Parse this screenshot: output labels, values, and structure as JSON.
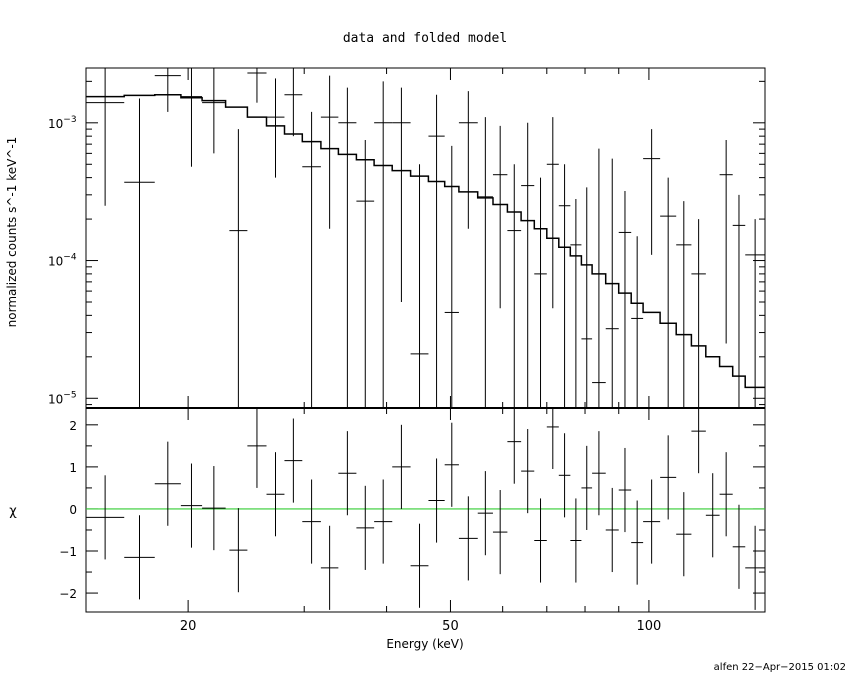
{
  "chart_data": [
    {
      "type": "scatter",
      "title": "data and folded model",
      "ylabel": "normalized counts s^-1 keV^-1",
      "xscale": "log",
      "yscale": "log",
      "xlim": [
        14,
        150
      ],
      "ylim": [
        8.5e-06,
        0.0025
      ],
      "y_ticks": [
        {
          "base": "10",
          "exp": "−3",
          "value": 0.001
        },
        {
          "base": "10",
          "exp": "−4",
          "value": 0.0001
        },
        {
          "base": "10",
          "exp": "−5",
          "value": 1e-05
        }
      ],
      "model_color": "#000000",
      "data_points": [
        {
          "xlo": 14.0,
          "xhi": 16.0,
          "y": 0.0014,
          "ylo": 0.00025,
          "yhi": 0.0025
        },
        {
          "xlo": 16.0,
          "xhi": 17.8,
          "y": 0.00037,
          "ylo": 8.5e-06,
          "yhi": 0.0015
        },
        {
          "xlo": 17.8,
          "xhi": 19.5,
          "y": 0.0022,
          "ylo": 0.0012,
          "yhi": 0.0025
        },
        {
          "xlo": 19.5,
          "xhi": 21.0,
          "y": 0.00155,
          "ylo": 0.00048,
          "yhi": 0.0025
        },
        {
          "xlo": 21.0,
          "xhi": 22.8,
          "y": 0.0014,
          "ylo": 0.0006,
          "yhi": 0.0025
        },
        {
          "xlo": 23.1,
          "xhi": 24.6,
          "y": 0.000165,
          "ylo": 8.5e-06,
          "yhi": 0.0009
        },
        {
          "xlo": 24.6,
          "xhi": 26.3,
          "y": 0.0023,
          "ylo": 0.0014,
          "yhi": 0.0025
        },
        {
          "xlo": 26.3,
          "xhi": 28.0,
          "y": 0.0011,
          "ylo": 0.0004,
          "yhi": 0.0021
        },
        {
          "xlo": 28.0,
          "xhi": 29.8,
          "y": 0.0016,
          "ylo": 0.0008,
          "yhi": 0.0025
        },
        {
          "xlo": 29.8,
          "xhi": 31.8,
          "y": 0.00048,
          "ylo": 8.5e-06,
          "yhi": 0.0012
        },
        {
          "xlo": 31.8,
          "xhi": 33.8,
          "y": 0.0011,
          "ylo": 0.00017,
          "yhi": 0.0022
        },
        {
          "xlo": 33.8,
          "xhi": 36.0,
          "y": 0.001,
          "ylo": 8.5e-06,
          "yhi": 0.0018
        },
        {
          "xlo": 36.0,
          "xhi": 38.3,
          "y": 0.00027,
          "ylo": 8.5e-06,
          "yhi": 0.00075
        },
        {
          "xlo": 38.3,
          "xhi": 40.8,
          "y": 0.001,
          "ylo": 8.5e-06,
          "yhi": 0.002
        },
        {
          "xlo": 40.8,
          "xhi": 43.5,
          "y": 0.001,
          "ylo": 5e-05,
          "yhi": 0.0018
        },
        {
          "xlo": 43.5,
          "xhi": 46.3,
          "y": 2.1e-05,
          "ylo": 8.5e-06,
          "yhi": 0.0005
        },
        {
          "xlo": 46.3,
          "xhi": 49.0,
          "y": 0.0008,
          "ylo": 8.5e-06,
          "yhi": 0.0016
        },
        {
          "xlo": 49.0,
          "xhi": 51.5,
          "y": 4.2e-05,
          "ylo": 8.5e-06,
          "yhi": 0.00068
        },
        {
          "xlo": 51.5,
          "xhi": 55.0,
          "y": 0.001,
          "ylo": 0.00017,
          "yhi": 0.0017
        },
        {
          "xlo": 55.0,
          "xhi": 58.0,
          "y": 0.00029,
          "ylo": 8.5e-06,
          "yhi": 0.0011
        },
        {
          "xlo": 58.0,
          "xhi": 61.0,
          "y": 0.00042,
          "ylo": 4.5e-05,
          "yhi": 0.00095
        },
        {
          "xlo": 61.0,
          "xhi": 64.0,
          "y": 0.000165,
          "ylo": 8.5e-06,
          "yhi": 0.0005
        },
        {
          "xlo": 64.0,
          "xhi": 67.0,
          "y": 0.00035,
          "ylo": 8.5e-06,
          "yhi": 0.001
        },
        {
          "xlo": 67.0,
          "xhi": 70.0,
          "y": 8e-05,
          "ylo": 8.5e-06,
          "yhi": 0.0004
        },
        {
          "xlo": 70.0,
          "xhi": 73.0,
          "y": 0.0005,
          "ylo": 4.5e-05,
          "yhi": 0.0011
        },
        {
          "xlo": 73.0,
          "xhi": 76.0,
          "y": 0.00025,
          "ylo": 8.5e-06,
          "yhi": 0.0005
        },
        {
          "xlo": 76.0,
          "xhi": 79.0,
          "y": 0.00013,
          "ylo": 8.5e-06,
          "yhi": 0.00028
        },
        {
          "xlo": 79.0,
          "xhi": 82.0,
          "y": 2.7e-05,
          "ylo": 8.5e-06,
          "yhi": 0.00034
        },
        {
          "xlo": 82.0,
          "xhi": 86.0,
          "y": 1.3e-05,
          "ylo": 8.5e-06,
          "yhi": 0.00065
        },
        {
          "xlo": 86.0,
          "xhi": 90.0,
          "y": 3.2e-05,
          "ylo": 8.5e-06,
          "yhi": 0.00055
        },
        {
          "xlo": 90.0,
          "xhi": 94.0,
          "y": 0.00016,
          "ylo": 8.5e-06,
          "yhi": 0.00032
        },
        {
          "xlo": 94.0,
          "xhi": 98.0,
          "y": 3.8e-05,
          "ylo": 8.5e-06,
          "yhi": 0.00015
        },
        {
          "xlo": 98.0,
          "xhi": 104.0,
          "y": 0.00055,
          "ylo": 0.00011,
          "yhi": 0.0009
        },
        {
          "xlo": 104.0,
          "xhi": 110.0,
          "y": 0.00021,
          "ylo": 8.5e-06,
          "yhi": 0.0004
        },
        {
          "xlo": 110.0,
          "xhi": 116.0,
          "y": 0.00013,
          "ylo": 8.5e-06,
          "yhi": 0.00027
        },
        {
          "xlo": 116.0,
          "xhi": 122.0,
          "y": 8e-05,
          "ylo": 8.5e-06,
          "yhi": 0.0002
        },
        {
          "xlo": 128.0,
          "xhi": 134.0,
          "y": 0.00042,
          "ylo": 2.5e-05,
          "yhi": 0.00075
        },
        {
          "xlo": 134.0,
          "xhi": 140.0,
          "y": 0.00018,
          "ylo": 8.5e-06,
          "yhi": 0.0003
        },
        {
          "xlo": 140.0,
          "xhi": 150.0,
          "y": 0.00011,
          "ylo": 8.5e-06,
          "yhi": 0.0002
        }
      ],
      "model_steps": [
        {
          "x": 14.0,
          "y": 0.00155
        },
        {
          "x": 16.0,
          "y": 0.00158
        },
        {
          "x": 17.8,
          "y": 0.0016
        },
        {
          "x": 19.5,
          "y": 0.00152
        },
        {
          "x": 21.0,
          "y": 0.00145
        },
        {
          "x": 22.8,
          "y": 0.0013
        },
        {
          "x": 24.6,
          "y": 0.0011
        },
        {
          "x": 26.3,
          "y": 0.00095
        },
        {
          "x": 28.0,
          "y": 0.00083
        },
        {
          "x": 29.8,
          "y": 0.00073
        },
        {
          "x": 31.8,
          "y": 0.00065
        },
        {
          "x": 33.8,
          "y": 0.00059
        },
        {
          "x": 36.0,
          "y": 0.00054
        },
        {
          "x": 38.3,
          "y": 0.00049
        },
        {
          "x": 40.8,
          "y": 0.00045
        },
        {
          "x": 43.5,
          "y": 0.00041
        },
        {
          "x": 46.3,
          "y": 0.000375
        },
        {
          "x": 49.0,
          "y": 0.000345
        },
        {
          "x": 51.5,
          "y": 0.000315
        },
        {
          "x": 55.0,
          "y": 0.000285
        },
        {
          "x": 58.0,
          "y": 0.000255
        },
        {
          "x": 61.0,
          "y": 0.000225
        },
        {
          "x": 64.0,
          "y": 0.000195
        },
        {
          "x": 67.0,
          "y": 0.00017
        },
        {
          "x": 70.0,
          "y": 0.000145
        },
        {
          "x": 73.0,
          "y": 0.000125
        },
        {
          "x": 76.0,
          "y": 0.000108
        },
        {
          "x": 79.0,
          "y": 9.3e-05
        },
        {
          "x": 82.0,
          "y": 8e-05
        },
        {
          "x": 86.0,
          "y": 6.8e-05
        },
        {
          "x": 90.0,
          "y": 5.8e-05
        },
        {
          "x": 94.0,
          "y": 4.9e-05
        },
        {
          "x": 98.0,
          "y": 4.2e-05
        },
        {
          "x": 104.0,
          "y": 3.5e-05
        },
        {
          "x": 110.0,
          "y": 2.9e-05
        },
        {
          "x": 116.0,
          "y": 2.4e-05
        },
        {
          "x": 122.0,
          "y": 2e-05
        },
        {
          "x": 128.0,
          "y": 1.7e-05
        },
        {
          "x": 134.0,
          "y": 1.45e-05
        },
        {
          "x": 140.0,
          "y": 1.2e-05
        },
        {
          "x": 150.0,
          "y": 1.2e-05
        }
      ]
    },
    {
      "type": "scatter",
      "xlabel": "Energy (keV)",
      "ylabel": "χ",
      "xscale": "log",
      "xlim": [
        14,
        150
      ],
      "ylim": [
        -2.45,
        2.4
      ],
      "x_ticks": [
        {
          "label": "20",
          "value": 20
        },
        {
          "label": "50",
          "value": 50
        },
        {
          "label": "100",
          "value": 100
        }
      ],
      "y_ticks": [
        {
          "label": "2",
          "value": 2
        },
        {
          "label": "1",
          "value": 1
        },
        {
          "label": "0",
          "value": 0
        },
        {
          "label": "−1",
          "value": -1
        },
        {
          "label": "−2",
          "value": -2
        }
      ],
      "zero_line_color": "#33cc33",
      "residuals": [
        {
          "xlo": 14.0,
          "xhi": 16.0,
          "y": -0.2
        },
        {
          "xlo": 16.0,
          "xhi": 17.8,
          "y": -1.15
        },
        {
          "xlo": 17.8,
          "xhi": 19.5,
          "y": 0.6
        },
        {
          "xlo": 19.5,
          "xhi": 21.0,
          "y": 0.08
        },
        {
          "xlo": 21.0,
          "xhi": 22.8,
          "y": 0.02
        },
        {
          "xlo": 23.1,
          "xhi": 24.6,
          "y": -0.98
        },
        {
          "xlo": 24.6,
          "xhi": 26.3,
          "y": 1.5
        },
        {
          "xlo": 26.3,
          "xhi": 28.0,
          "y": 0.35
        },
        {
          "xlo": 28.0,
          "xhi": 29.8,
          "y": 1.15
        },
        {
          "xlo": 29.8,
          "xhi": 31.8,
          "y": -0.3
        },
        {
          "xlo": 31.8,
          "xhi": 33.8,
          "y": -1.4
        },
        {
          "xlo": 33.8,
          "xhi": 36.0,
          "y": 0.85
        },
        {
          "xlo": 36.0,
          "xhi": 38.3,
          "y": -0.45
        },
        {
          "xlo": 38.3,
          "xhi": 40.8,
          "y": -0.3
        },
        {
          "xlo": 40.8,
          "xhi": 43.5,
          "y": 1.0
        },
        {
          "xlo": 43.5,
          "xhi": 46.3,
          "y": -1.35
        },
        {
          "xlo": 46.3,
          "xhi": 49.0,
          "y": 0.2
        },
        {
          "xlo": 49.0,
          "xhi": 51.5,
          "y": 1.05
        },
        {
          "xlo": 51.5,
          "xhi": 55.0,
          "y": -0.7
        },
        {
          "xlo": 55.0,
          "xhi": 58.0,
          "y": -0.1
        },
        {
          "xlo": 58.0,
          "xhi": 61.0,
          "y": -0.55
        },
        {
          "xlo": 61.0,
          "xhi": 64.0,
          "y": 1.6
        },
        {
          "xlo": 64.0,
          "xhi": 67.0,
          "y": 0.9
        },
        {
          "xlo": 67.0,
          "xhi": 70.0,
          "y": -0.75
        },
        {
          "xlo": 70.0,
          "xhi": 73.0,
          "y": 1.95
        },
        {
          "xlo": 73.0,
          "xhi": 76.0,
          "y": 0.8
        },
        {
          "xlo": 76.0,
          "xhi": 79.0,
          "y": -0.75
        },
        {
          "xlo": 79.0,
          "xhi": 82.0,
          "y": 0.5
        },
        {
          "xlo": 82.0,
          "xhi": 86.0,
          "y": 0.85
        },
        {
          "xlo": 86.0,
          "xhi": 90.0,
          "y": -0.5
        },
        {
          "xlo": 90.0,
          "xhi": 94.0,
          "y": 0.45
        },
        {
          "xlo": 94.0,
          "xhi": 98.0,
          "y": -0.8
        },
        {
          "xlo": 98.0,
          "xhi": 104.0,
          "y": -0.3
        },
        {
          "xlo": 104.0,
          "xhi": 110.0,
          "y": 0.75
        },
        {
          "xlo": 110.0,
          "xhi": 116.0,
          "y": -0.6
        },
        {
          "xlo": 116.0,
          "xhi": 122.0,
          "y": 1.85
        },
        {
          "xlo": 122.0,
          "xhi": 128.0,
          "y": -0.15
        },
        {
          "xlo": 128.0,
          "xhi": 134.0,
          "y": 0.35
        },
        {
          "xlo": 134.0,
          "xhi": 140.0,
          "y": -0.9
        },
        {
          "xlo": 140.0,
          "xhi": 150.0,
          "y": -1.4
        }
      ]
    }
  ],
  "footer": "alfen 22−Apr−2015 01:02"
}
